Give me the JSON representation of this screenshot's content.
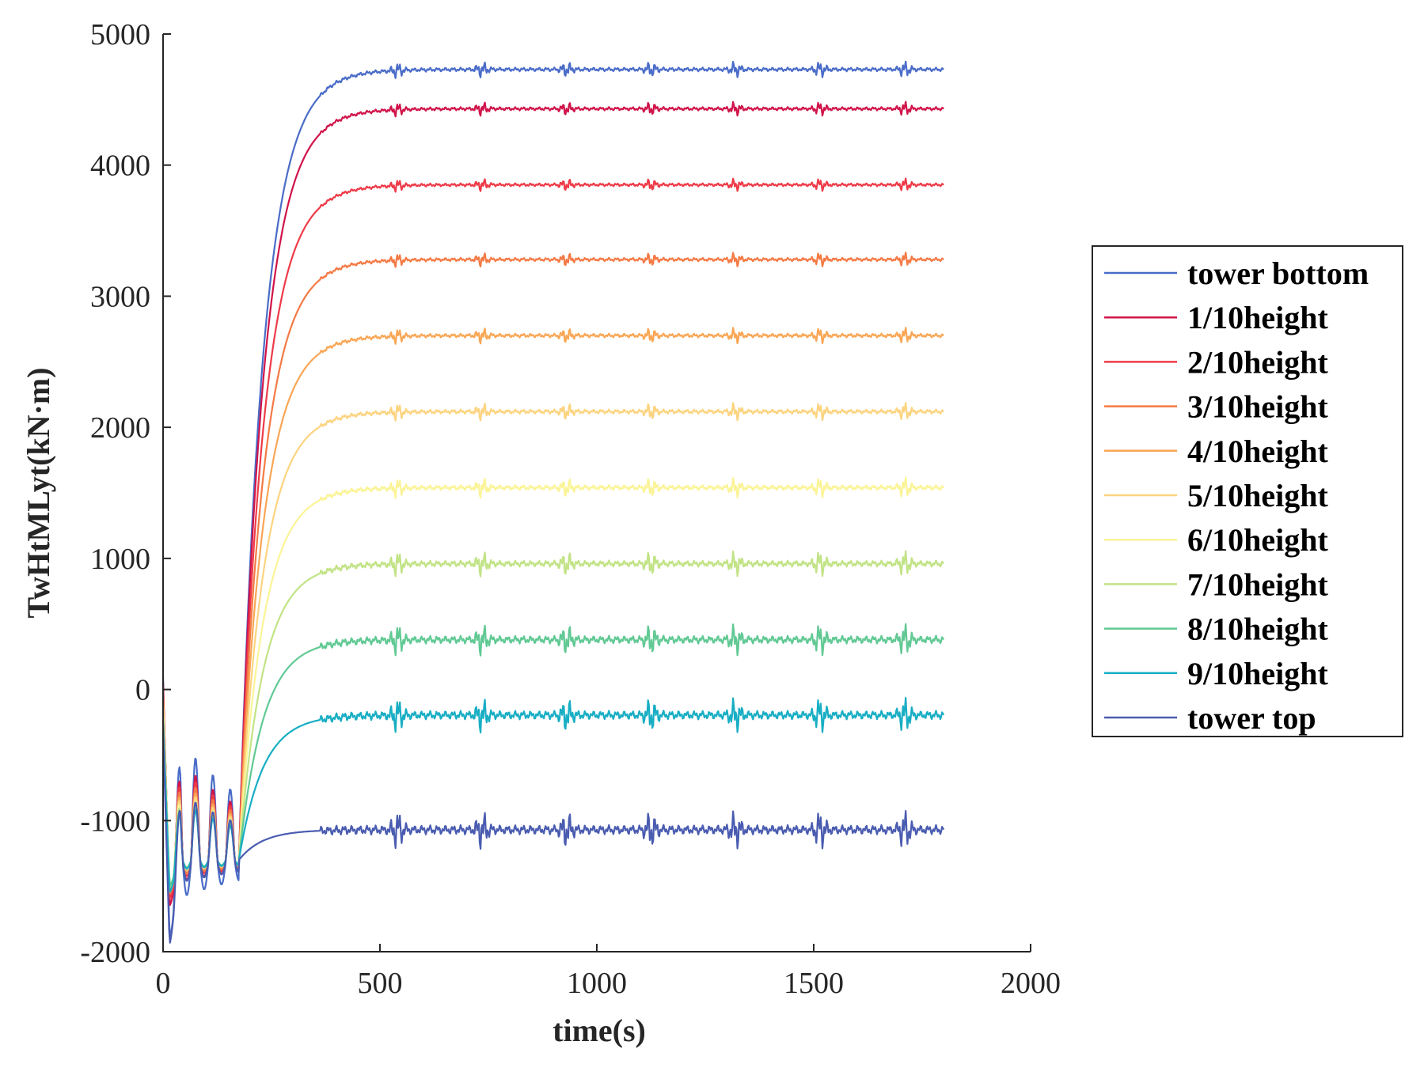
{
  "chart_data": {
    "type": "line",
    "title": "",
    "xlabel": "time(s)",
    "ylabel": "TwHtMLyt(kN·m)",
    "xlim": [
      0,
      2000
    ],
    "ylim": [
      -2000,
      5000
    ],
    "xticks": [
      0,
      500,
      1000,
      1500,
      2000
    ],
    "yticks": [
      -2000,
      -1000,
      0,
      1000,
      2000,
      3000,
      4000,
      5000
    ],
    "xtick_labels": [
      "0",
      "500",
      "1000",
      "1500",
      "2000"
    ],
    "ytick_labels": [
      "-2000",
      "-1000",
      "0",
      "1000",
      "2000",
      "3000",
      "4000",
      "5000"
    ],
    "grid": false,
    "legend_position": "right, outside",
    "x_end": 1800,
    "series": [
      {
        "name": "tower bottom",
        "color": "#4a6cc8",
        "steady": 4730,
        "dip": -1900,
        "osc": 25
      },
      {
        "name": "1/10height",
        "color": "#d0144a",
        "steady": 4430,
        "dip": -1650,
        "osc": 22
      },
      {
        "name": "2/10height",
        "color": "#ee3a48",
        "steady": 3850,
        "dip": -1600,
        "osc": 20
      },
      {
        "name": "3/10height",
        "color": "#f47a45",
        "steady": 3280,
        "dip": -1560,
        "osc": 22
      },
      {
        "name": "4/10height",
        "color": "#f9a655",
        "steady": 2700,
        "dip": -1520,
        "osc": 25
      },
      {
        "name": "5/10height",
        "color": "#fcd480",
        "steady": 2120,
        "dip": -1520,
        "osc": 28
      },
      {
        "name": "6/10height",
        "color": "#fbf497",
        "steady": 1540,
        "dip": -1500,
        "osc": 32
      },
      {
        "name": "7/10height",
        "color": "#c2e386",
        "steady": 960,
        "dip": -1500,
        "osc": 40
      },
      {
        "name": "8/10height",
        "color": "#61c994",
        "steady": 380,
        "dip": -1500,
        "osc": 50
      },
      {
        "name": "9/10height",
        "color": "#18aec4",
        "steady": -195,
        "dip": -1550,
        "osc": 55
      },
      {
        "name": "tower top",
        "color": "#4a5cb0",
        "steady": -1070,
        "dip": -1950,
        "osc": 60
      }
    ]
  }
}
